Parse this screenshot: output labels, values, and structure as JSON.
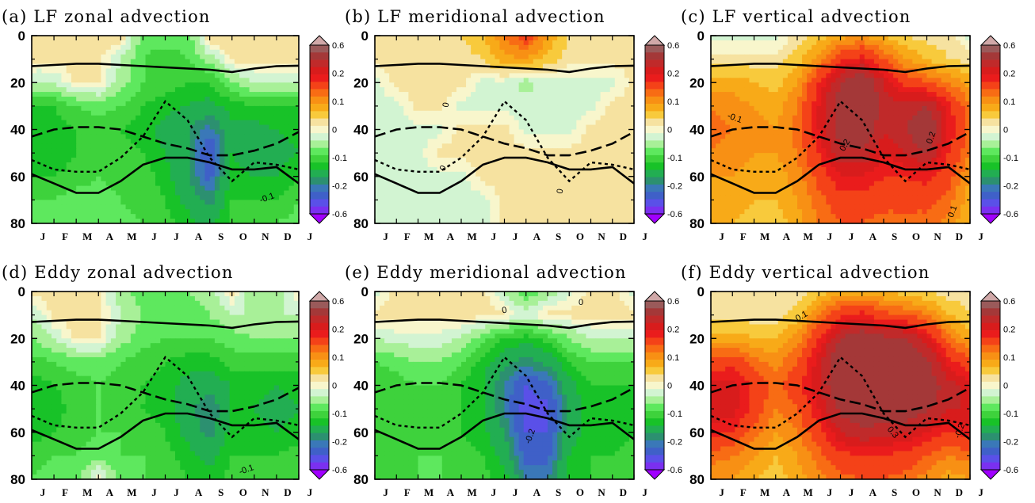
{
  "chart_data": [
    {
      "type": "heatmap",
      "id": "a",
      "title": "(a) LF zonal advection",
      "x": [
        "J",
        "F",
        "M",
        "A",
        "M",
        "J",
        "J",
        "A",
        "S",
        "O",
        "N",
        "D",
        "J"
      ],
      "y_ticks": [
        0,
        20,
        40,
        60,
        80
      ],
      "ylim": [
        80,
        0
      ],
      "colorbar_ticks": [
        "0.6",
        "0.2",
        "0.1",
        "0",
        "-0.1",
        "-0.2",
        "-0.6"
      ],
      "grid": false,
      "contour_labels": [
        "-0.1"
      ],
      "field": [
        [
          0.02,
          0.02,
          0.02,
          0.02,
          0.02,
          -0.05,
          -0.05,
          -0.05,
          0.02,
          0.02,
          0.02,
          0.02,
          0.02
        ],
        [
          0.01,
          0.01,
          0.01,
          0.01,
          -0.02,
          -0.06,
          -0.07,
          -0.06,
          -0.03,
          0.01,
          0.01,
          0.01,
          0.01
        ],
        [
          -0.02,
          -0.02,
          0.01,
          0.01,
          -0.03,
          -0.06,
          -0.07,
          -0.08,
          -0.08,
          -0.04,
          -0.02,
          -0.02,
          -0.02
        ],
        [
          -0.08,
          -0.08,
          -0.06,
          -0.05,
          -0.06,
          -0.08,
          -0.09,
          -0.1,
          -0.11,
          -0.09,
          -0.08,
          -0.08,
          -0.08
        ],
        [
          -0.09,
          -0.09,
          -0.08,
          -0.07,
          -0.08,
          -0.09,
          -0.11,
          -0.13,
          -0.16,
          -0.11,
          -0.11,
          -0.1,
          -0.09
        ],
        [
          -0.1,
          -0.1,
          -0.08,
          -0.07,
          -0.07,
          -0.08,
          -0.1,
          -0.13,
          -0.2,
          -0.1,
          -0.12,
          -0.11,
          -0.1
        ],
        [
          -0.08,
          -0.08,
          -0.07,
          -0.06,
          -0.07,
          -0.07,
          -0.09,
          -0.13,
          -0.18,
          -0.09,
          -0.1,
          -0.1,
          -0.08
        ],
        [
          -0.06,
          -0.06,
          -0.05,
          -0.05,
          -0.06,
          -0.07,
          -0.08,
          -0.11,
          -0.14,
          -0.08,
          -0.08,
          -0.08,
          -0.06
        ],
        [
          -0.05,
          -0.05,
          -0.04,
          -0.04,
          -0.05,
          -0.06,
          -0.07,
          -0.09,
          -0.11,
          -0.07,
          -0.07,
          -0.06,
          -0.05
        ]
      ]
    },
    {
      "type": "heatmap",
      "id": "b",
      "title": "(b) LF meridional advection",
      "x": [
        "J",
        "F",
        "M",
        "A",
        "M",
        "J",
        "J",
        "A",
        "S",
        "O",
        "N",
        "D",
        "J"
      ],
      "y_ticks": [
        0,
        20,
        40,
        60,
        80
      ],
      "ylim": [
        80,
        0
      ],
      "colorbar_ticks": [
        "0.6",
        "0.2",
        "0.1",
        "0",
        "-0.1",
        "-0.2",
        "-0.6"
      ],
      "grid": false,
      "contour_labels": [
        "0",
        "0",
        "0"
      ],
      "field": [
        [
          0.01,
          0.01,
          0.01,
          0.01,
          0.02,
          0.04,
          0.08,
          0.12,
          0.06,
          0.02,
          0.01,
          0.01,
          0.01
        ],
        [
          0.01,
          0.01,
          0.01,
          0.01,
          0.01,
          0.02,
          0.05,
          0.06,
          0.03,
          0.01,
          0.01,
          0.01,
          0.01
        ],
        [
          -0.01,
          0.01,
          0.01,
          0.01,
          0.01,
          -0.01,
          -0.01,
          -0.03,
          -0.01,
          -0.01,
          -0.01,
          -0.01,
          0.01
        ],
        [
          -0.01,
          -0.01,
          0.01,
          0.01,
          -0.01,
          -0.01,
          -0.01,
          -0.01,
          -0.01,
          -0.01,
          -0.01,
          0.01,
          0.01
        ],
        [
          -0.01,
          -0.01,
          -0.01,
          -0.01,
          0.01,
          0.01,
          0.01,
          -0.01,
          -0.01,
          -0.01,
          0.01,
          0.01,
          0.01
        ],
        [
          -0.01,
          -0.01,
          -0.01,
          0.01,
          0.01,
          0.01,
          0.01,
          0.01,
          0.01,
          0.01,
          0.01,
          0.01,
          0.01
        ],
        [
          -0.01,
          -0.01,
          -0.01,
          -0.01,
          -0.01,
          0.01,
          0.01,
          0.01,
          0.01,
          0.01,
          0.01,
          0.01,
          0.01
        ],
        [
          -0.01,
          -0.01,
          -0.01,
          -0.01,
          -0.01,
          -0.01,
          0.01,
          0.01,
          0.01,
          0.01,
          0.01,
          0.01,
          0.01
        ],
        [
          -0.01,
          -0.01,
          -0.01,
          -0.01,
          -0.01,
          -0.01,
          0.01,
          0.01,
          0.01,
          0.01,
          0.01,
          0.01,
          0.01
        ]
      ]
    },
    {
      "type": "heatmap",
      "id": "c",
      "title": "(c) LF vertical advection",
      "x": [
        "J",
        "F",
        "M",
        "A",
        "M",
        "J",
        "J",
        "A",
        "S",
        "O",
        "N",
        "D",
        "J"
      ],
      "y_ticks": [
        0,
        20,
        40,
        60,
        80
      ],
      "ylim": [
        80,
        0
      ],
      "colorbar_ticks": [
        "0.6",
        "0.2",
        "0.1",
        "0",
        "-0.1",
        "-0.2",
        "-0.6"
      ],
      "grid": false,
      "contour_labels": [
        "-0.1",
        "0.2",
        "0.2",
        "0.1"
      ],
      "field": [
        [
          -0.01,
          -0.01,
          -0.01,
          -0.01,
          0.01,
          0.03,
          0.05,
          0.06,
          0.04,
          0.02,
          0.01,
          0.01,
          -0.01
        ],
        [
          0.01,
          0.01,
          0.01,
          0.01,
          0.03,
          0.07,
          0.12,
          0.14,
          0.1,
          0.06,
          0.04,
          0.02,
          0.01
        ],
        [
          0.05,
          0.05,
          0.04,
          0.03,
          0.06,
          0.13,
          0.2,
          0.24,
          0.17,
          0.12,
          0.1,
          0.08,
          0.05
        ],
        [
          0.08,
          0.07,
          0.06,
          0.05,
          0.08,
          0.15,
          0.22,
          0.26,
          0.18,
          0.18,
          0.2,
          0.14,
          0.08
        ],
        [
          0.09,
          0.08,
          0.07,
          0.06,
          0.09,
          0.15,
          0.22,
          0.24,
          0.17,
          0.2,
          0.24,
          0.15,
          0.09
        ],
        [
          0.08,
          0.07,
          0.06,
          0.06,
          0.08,
          0.13,
          0.19,
          0.19,
          0.15,
          0.17,
          0.2,
          0.13,
          0.08
        ],
        [
          0.06,
          0.06,
          0.05,
          0.05,
          0.07,
          0.11,
          0.15,
          0.15,
          0.13,
          0.13,
          0.14,
          0.11,
          0.06
        ],
        [
          0.05,
          0.05,
          0.04,
          0.04,
          0.06,
          0.09,
          0.12,
          0.12,
          0.11,
          0.11,
          0.11,
          0.09,
          0.05
        ],
        [
          0.04,
          0.04,
          0.03,
          0.03,
          0.05,
          0.08,
          0.1,
          0.1,
          0.09,
          0.09,
          0.09,
          0.07,
          0.04
        ]
      ]
    },
    {
      "type": "heatmap",
      "id": "d",
      "title": "(d) Eddy zonal advection",
      "x": [
        "J",
        "F",
        "M",
        "A",
        "M",
        "J",
        "J",
        "A",
        "S",
        "O",
        "N",
        "D",
        "J"
      ],
      "y_ticks": [
        0,
        20,
        40,
        60,
        80
      ],
      "ylim": [
        80,
        0
      ],
      "colorbar_ticks": [
        "0.6",
        "0.2",
        "0.1",
        "0",
        "-0.1",
        "-0.2",
        "-0.6"
      ],
      "grid": false,
      "contour_labels": [
        "-0.1"
      ],
      "field": [
        [
          0.01,
          0.01,
          0.01,
          0.01,
          -0.03,
          -0.05,
          -0.05,
          -0.04,
          -0.03,
          0.01,
          -0.04,
          -0.03,
          0.01
        ],
        [
          -0.02,
          0.01,
          0.01,
          0.01,
          -0.02,
          -0.04,
          -0.05,
          -0.05,
          -0.04,
          -0.02,
          -0.02,
          -0.02,
          -0.02
        ],
        [
          -0.04,
          -0.02,
          0.01,
          0.01,
          -0.03,
          -0.05,
          -0.06,
          -0.06,
          -0.06,
          -0.05,
          -0.04,
          -0.04,
          -0.04
        ],
        [
          -0.07,
          -0.06,
          -0.05,
          -0.05,
          -0.06,
          -0.07,
          -0.08,
          -0.09,
          -0.09,
          -0.07,
          -0.07,
          -0.07,
          -0.07
        ],
        [
          -0.09,
          -0.08,
          -0.07,
          -0.06,
          -0.07,
          -0.08,
          -0.09,
          -0.11,
          -0.12,
          -0.1,
          -0.09,
          -0.1,
          -0.09
        ],
        [
          -0.1,
          -0.09,
          -0.07,
          -0.06,
          -0.07,
          -0.08,
          -0.09,
          -0.12,
          -0.15,
          -0.1,
          -0.1,
          -0.11,
          -0.1
        ],
        [
          -0.09,
          -0.08,
          -0.07,
          -0.06,
          -0.06,
          -0.07,
          -0.08,
          -0.11,
          -0.14,
          -0.09,
          -0.09,
          -0.1,
          -0.09
        ],
        [
          -0.07,
          -0.06,
          -0.06,
          -0.05,
          -0.06,
          -0.06,
          -0.07,
          -0.09,
          -0.11,
          -0.08,
          -0.08,
          -0.08,
          -0.07
        ],
        [
          -0.06,
          -0.05,
          -0.05,
          0.01,
          -0.05,
          -0.06,
          -0.06,
          -0.08,
          -0.09,
          -0.07,
          -0.07,
          -0.07,
          -0.06
        ]
      ]
    },
    {
      "type": "heatmap",
      "id": "e",
      "title": "(e) Eddy meridional advection",
      "x": [
        "J",
        "F",
        "M",
        "A",
        "M",
        "J",
        "J",
        "A",
        "S",
        "O",
        "N",
        "D",
        "J"
      ],
      "y_ticks": [
        0,
        20,
        40,
        60,
        80
      ],
      "ylim": [
        80,
        0
      ],
      "colorbar_ticks": [
        "0.6",
        "0.2",
        "0.1",
        "0",
        "-0.1",
        "-0.2",
        "-0.6"
      ],
      "grid": false,
      "contour_labels": [
        "0",
        "0",
        "-0.2"
      ],
      "field": [
        [
          -0.01,
          0.01,
          0.01,
          0.01,
          0.01,
          0.01,
          -0.02,
          -0.06,
          -0.03,
          -0.01,
          0.01,
          0.01,
          -0.01
        ],
        [
          0.01,
          0.01,
          0.01,
          0.01,
          0.01,
          0.01,
          0.01,
          -0.01,
          0.01,
          0.01,
          0.01,
          0.01,
          0.01
        ],
        [
          -0.02,
          -0.01,
          -0.01,
          -0.01,
          -0.02,
          -0.05,
          -0.08,
          -0.09,
          -0.07,
          -0.04,
          -0.02,
          -0.02,
          -0.02
        ],
        [
          -0.06,
          -0.05,
          -0.04,
          -0.04,
          -0.06,
          -0.09,
          -0.12,
          -0.14,
          -0.12,
          -0.08,
          -0.06,
          -0.06,
          -0.06
        ],
        [
          -0.08,
          -0.07,
          -0.06,
          -0.06,
          -0.08,
          -0.1,
          -0.15,
          -0.2,
          -0.18,
          -0.11,
          -0.08,
          -0.08,
          -0.08
        ],
        [
          -0.08,
          -0.08,
          -0.07,
          -0.07,
          -0.08,
          -0.1,
          -0.15,
          -0.22,
          -0.21,
          -0.12,
          -0.09,
          -0.09,
          -0.08
        ],
        [
          -0.08,
          -0.07,
          -0.07,
          -0.07,
          -0.08,
          -0.09,
          -0.13,
          -0.2,
          -0.2,
          -0.11,
          -0.09,
          -0.09,
          -0.08
        ],
        [
          -0.07,
          -0.07,
          -0.06,
          -0.06,
          -0.07,
          -0.08,
          -0.11,
          -0.18,
          -0.18,
          -0.1,
          -0.08,
          -0.08,
          -0.07
        ],
        [
          -0.06,
          -0.06,
          -0.06,
          -0.06,
          -0.06,
          -0.07,
          -0.09,
          -0.15,
          -0.15,
          -0.09,
          -0.08,
          -0.07,
          -0.06
        ]
      ]
    },
    {
      "type": "heatmap",
      "id": "f",
      "title": "(f) Eddy vertical advection",
      "x": [
        "J",
        "F",
        "M",
        "A",
        "M",
        "J",
        "J",
        "A",
        "S",
        "O",
        "N",
        "D",
        "J"
      ],
      "y_ticks": [
        0,
        20,
        40,
        60,
        80
      ],
      "ylim": [
        80,
        0
      ],
      "colorbar_ticks": [
        "0.6",
        "0.2",
        "0.1",
        "0",
        "-0.1",
        "-0.2",
        "-0.6"
      ],
      "grid": false,
      "contour_labels": [
        "0.1",
        "-0.2",
        "0.3"
      ],
      "field": [
        [
          0.01,
          0.01,
          0.01,
          0.01,
          0.01,
          0.03,
          0.05,
          0.05,
          0.04,
          0.03,
          0.02,
          0.01,
          0.01
        ],
        [
          0.01,
          0.01,
          0.01,
          0.01,
          0.03,
          0.08,
          0.12,
          0.14,
          0.11,
          0.1,
          0.08,
          0.04,
          0.02
        ],
        [
          0.05,
          0.05,
          0.04,
          0.04,
          0.07,
          0.13,
          0.2,
          0.23,
          0.21,
          0.2,
          0.16,
          0.09,
          0.05
        ],
        [
          0.11,
          0.12,
          0.09,
          0.07,
          0.1,
          0.16,
          0.24,
          0.27,
          0.26,
          0.25,
          0.21,
          0.14,
          0.11
        ],
        [
          0.16,
          0.16,
          0.12,
          0.09,
          0.12,
          0.17,
          0.24,
          0.26,
          0.26,
          0.26,
          0.23,
          0.18,
          0.16
        ],
        [
          0.17,
          0.16,
          0.12,
          0.08,
          0.1,
          0.15,
          0.21,
          0.24,
          0.23,
          0.23,
          0.21,
          0.17,
          0.17
        ],
        [
          0.14,
          0.13,
          0.09,
          0.06,
          0.08,
          0.12,
          0.17,
          0.19,
          0.18,
          0.17,
          0.15,
          0.13,
          0.14
        ],
        [
          0.09,
          0.08,
          0.06,
          0.04,
          0.06,
          0.09,
          0.12,
          0.13,
          0.13,
          0.12,
          0.1,
          0.08,
          0.09
        ],
        [
          0.06,
          0.06,
          0.04,
          0.03,
          0.05,
          0.07,
          0.09,
          0.1,
          0.1,
          0.09,
          0.07,
          0.05,
          0.06
        ]
      ]
    }
  ],
  "overlay_lines": {
    "upper_solid": [
      13,
      12.5,
      12,
      12,
      12.5,
      13,
      13.5,
      14,
      14.5,
      15.5,
      14,
      13,
      12.8
    ],
    "lower_solid": [
      59,
      63,
      67,
      67,
      62,
      55,
      52,
      52,
      54,
      57,
      57,
      56,
      63
    ],
    "dashed": [
      43,
      40,
      39,
      39,
      40,
      43,
      46,
      48,
      51,
      51,
      49,
      46,
      41
    ],
    "dotted": [
      53,
      57,
      58,
      58,
      52,
      43,
      28,
      36,
      52,
      62,
      54,
      55,
      57
    ]
  }
}
